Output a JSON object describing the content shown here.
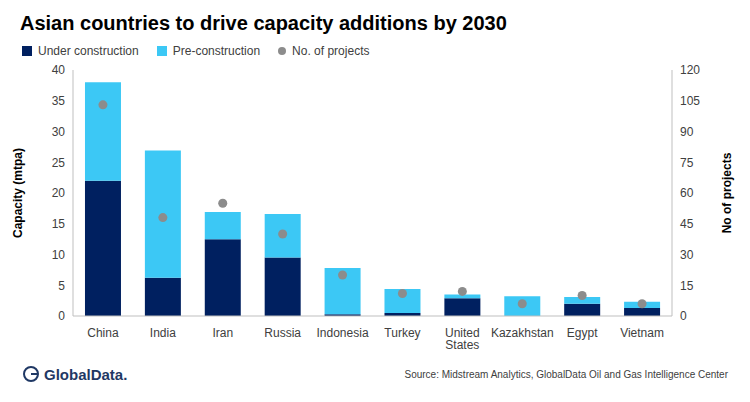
{
  "chart_data": {
    "type": "bar",
    "title": "Asian countries to drive capacity additions by 2030",
    "source": "Source: Midstream Analytics, GlobalData Oil and Gas Intelligence Center",
    "brand": "GlobalData.",
    "categories": [
      "China",
      "India",
      "Iran",
      "Russia",
      "Indonesia",
      "Turkey",
      "United States",
      "Kazakhstan",
      "Egypt",
      "Vietnam"
    ],
    "series": [
      {
        "name": "Under construction",
        "type": "bar",
        "color": "#002060",
        "values": [
          22,
          6.2,
          12.5,
          9.5,
          0.3,
          0.5,
          2.9,
          0,
          2.0,
          1.3
        ]
      },
      {
        "name": "Pre-construction",
        "type": "bar",
        "color": "#3cc8f5",
        "values": [
          16,
          20.7,
          4.4,
          7.1,
          7.5,
          3.9,
          0.6,
          3.2,
          1.1,
          1.0
        ]
      },
      {
        "name": "No. of projects",
        "type": "scatter",
        "color": "#8c8c8c",
        "marker": "circle",
        "axis": "y2",
        "values": [
          103,
          48,
          55,
          40,
          20,
          11,
          12,
          6,
          10,
          6
        ]
      }
    ],
    "stacked": true,
    "y_label": "Capacity  (mtpa)",
    "y2_label": "No of projects",
    "ylim": [
      0,
      40
    ],
    "yticks": [
      0,
      5,
      10,
      15,
      20,
      25,
      30,
      35,
      40
    ],
    "y2lim": [
      0,
      120
    ],
    "y2ticks": [
      0,
      15,
      30,
      45,
      60,
      75,
      90,
      105,
      120
    ],
    "grid": false,
    "legend": "top-left"
  }
}
